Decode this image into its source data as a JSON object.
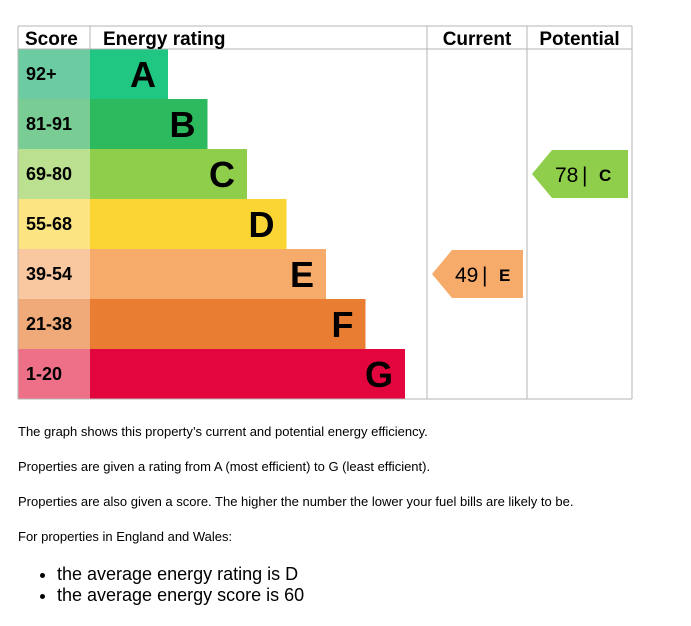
{
  "chart_data": {
    "type": "bar",
    "headers": {
      "score": "Score",
      "rating": "Energy rating",
      "current": "Current",
      "potential": "Potential"
    },
    "bands": [
      {
        "range": "92+",
        "letter": "A",
        "color": "#1fc783",
        "score_color": "#6ccba0"
      },
      {
        "range": "81-91",
        "letter": "B",
        "color": "#2dba5f",
        "score_color": "#79cc93"
      },
      {
        "range": "69-80",
        "letter": "C",
        "color": "#8fce4a",
        "score_color": "#bbe08f"
      },
      {
        "range": "55-68",
        "letter": "D",
        "color": "#fad534",
        "score_color": "#fce482"
      },
      {
        "range": "39-54",
        "letter": "E",
        "color": "#f7ab6b",
        "score_color": "#f9c7a0"
      },
      {
        "range": "21-38",
        "letter": "F",
        "color": "#e97e32",
        "score_color": "#f0a978"
      },
      {
        "range": "1-20",
        "letter": "G",
        "color": "#e3053d",
        "score_color": "#ed7088"
      }
    ],
    "current": {
      "score": 49,
      "letter": "E",
      "color": "#f7ab6b"
    },
    "potential": {
      "score": 78,
      "letter": "C",
      "color": "#8fce4a"
    }
  },
  "text": {
    "p1": "The graph shows this property’s current and potential energy efficiency.",
    "p2": "Properties are given a rating from A (most efficient) to G (least efficient).",
    "p3": "Properties are also given a score. The higher the number the lower your fuel bills are likely to be.",
    "p4": "For properties in England and Wales:",
    "bullets": [
      "the average energy rating is D",
      "the average energy score is 60"
    ]
  }
}
